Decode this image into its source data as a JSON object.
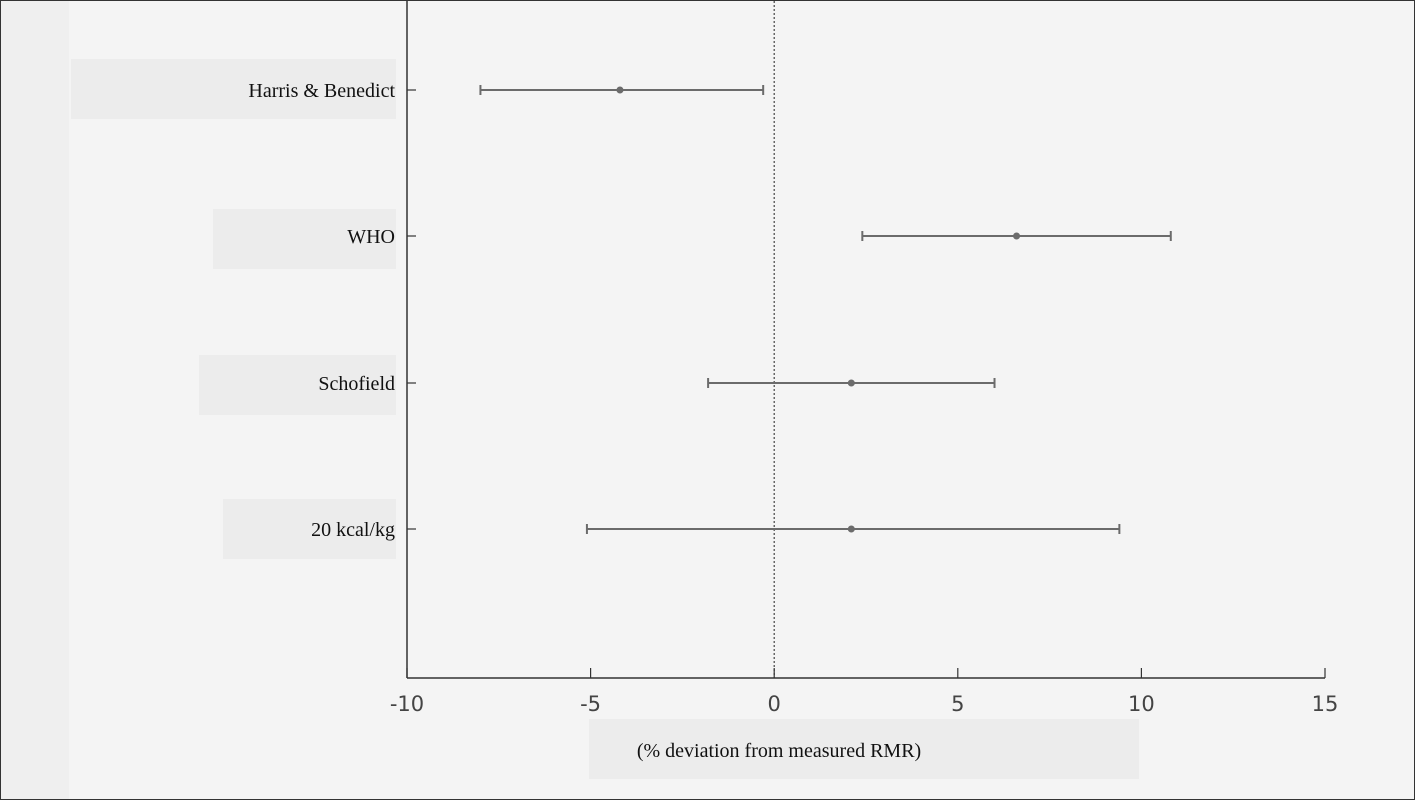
{
  "chart_data": {
    "type": "forest",
    "orientation": "horizontal",
    "categories": [
      "Harris & Benedict",
      "WHO",
      "Schofield",
      "20 kcal/kg"
    ],
    "estimates": [
      {
        "label": "Harris & Benedict",
        "mean": -4.2,
        "lower": -8.0,
        "upper": -0.3
      },
      {
        "label": "WHO",
        "mean": 6.6,
        "lower": 2.4,
        "upper": 10.8
      },
      {
        "label": "Schofield",
        "mean": 2.1,
        "lower": -1.8,
        "upper": 6.0
      },
      {
        "label": "20 kcal/kg",
        "mean": 2.1,
        "lower": -5.1,
        "upper": 9.4
      }
    ],
    "xlabel": "(% deviation from measured RMR)",
    "xlim": [
      -10,
      15
    ],
    "xticks": [
      -10,
      -5,
      0,
      5,
      10,
      15
    ],
    "xtick_labels": [
      "-10",
      "-5",
      "0",
      "5",
      "10",
      "15"
    ],
    "reference_line": 0,
    "grid": false,
    "colors": {
      "marks": "#6b6b6b",
      "axis": "#333333",
      "reference_line": "#444444"
    }
  }
}
